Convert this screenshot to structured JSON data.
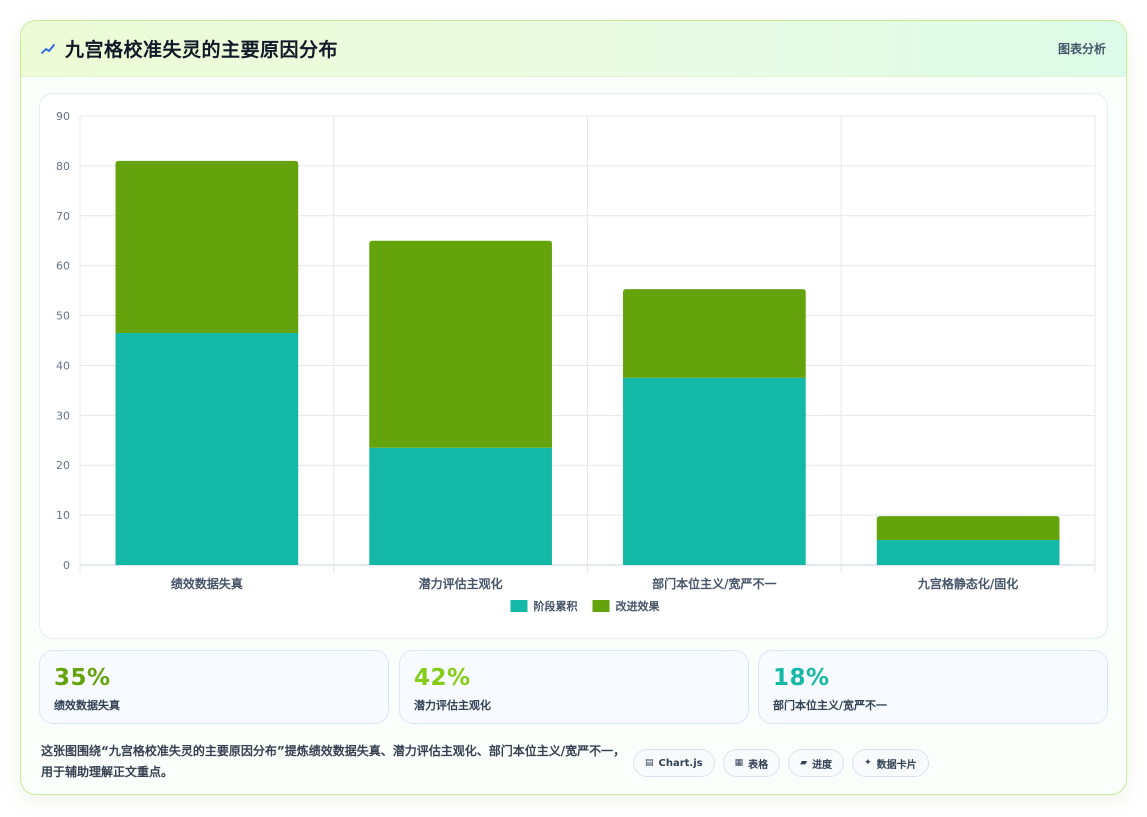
{
  "header": {
    "title": "九宫格校准失灵的主要原因分布",
    "link_label": "图表分析"
  },
  "chart_data": {
    "type": "bar",
    "stacked": true,
    "categories": [
      "绩效数据失真",
      "潜力评估主观化",
      "部门本位主义/宽严不一",
      "九宫格静态化/固化"
    ],
    "series": [
      {
        "name": "阶段累积",
        "color": "#14b8a6",
        "values": [
          46.5,
          23.5,
          37.5,
          5
        ]
      },
      {
        "name": "改进效果",
        "color": "#65a30d",
        "values": [
          34.5,
          41.5,
          17.8,
          4.8
        ]
      }
    ],
    "ylim": [
      0,
      90
    ],
    "yticks": [
      0,
      10,
      20,
      30,
      40,
      50,
      60,
      70,
      80,
      90
    ],
    "grid": true,
    "legend_position": "bottom"
  },
  "stats": [
    {
      "value": "35%",
      "label": "绩效数据失真",
      "color": "#65a30d"
    },
    {
      "value": "42%",
      "label": "潜力评估主观化",
      "color": "#84cc16"
    },
    {
      "value": "18%",
      "label": "部门本位主义/宽严不一",
      "color": "#14b8a6"
    }
  ],
  "footer": {
    "description": "这张图围绕“九宫格校准失灵的主要原因分布”提炼绩效数据失真、潜力评估主观化、部门本位主义/宽严不一，用于辅助理解正文重点。",
    "chips": [
      {
        "icon": "chart-icon",
        "label": "Chart.js"
      },
      {
        "icon": "table-icon",
        "label": "表格"
      },
      {
        "icon": "progress-icon",
        "label": "进度"
      },
      {
        "icon": "card-icon",
        "label": "数据卡片"
      }
    ]
  }
}
